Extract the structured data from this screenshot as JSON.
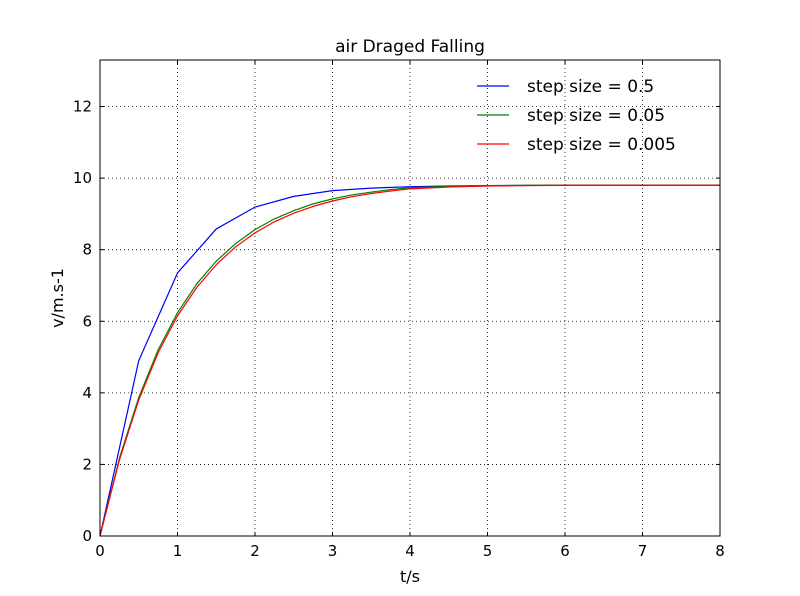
{
  "chart_data": {
    "type": "line",
    "title": "air Draged Falling",
    "xlabel": "t/s",
    "ylabel": "v/m.s-1",
    "xlim": [
      0,
      8
    ],
    "ylim": [
      0,
      13.3
    ],
    "xticks": [
      0,
      1,
      2,
      3,
      4,
      5,
      6,
      7,
      8
    ],
    "yticks": [
      0,
      2,
      4,
      6,
      8,
      10,
      12
    ],
    "grid": true,
    "legend_position": "top-right",
    "series": [
      {
        "name": "step size = 0.5",
        "color": "#0000ff",
        "x": [
          0,
          0.5,
          1.0,
          1.5,
          2.0,
          2.5,
          3.0,
          3.5,
          4.0,
          4.5,
          5.0,
          5.5,
          6.0,
          6.5,
          7.0,
          7.5,
          8.0
        ],
        "y": [
          0,
          4.9,
          7.35,
          8.58,
          9.19,
          9.49,
          9.65,
          9.72,
          9.76,
          9.78,
          9.79,
          9.795,
          9.8,
          9.8,
          9.8,
          9.8,
          9.8
        ]
      },
      {
        "name": "step size = 0.05",
        "color": "#008000",
        "x": [
          0,
          0.25,
          0.5,
          0.75,
          1.0,
          1.25,
          1.5,
          1.75,
          2.0,
          2.25,
          2.5,
          2.75,
          3.0,
          3.25,
          3.5,
          3.75,
          4.0,
          4.5,
          5.0,
          5.5,
          6.0,
          6.5,
          7.0,
          7.5,
          8.0
        ],
        "y": [
          0,
          2.17,
          3.87,
          5.2,
          6.24,
          7.05,
          7.68,
          8.17,
          8.56,
          8.86,
          9.09,
          9.28,
          9.42,
          9.53,
          9.61,
          9.68,
          9.73,
          9.77,
          9.79,
          9.8,
          9.8,
          9.8,
          9.8,
          9.8,
          9.8
        ]
      },
      {
        "name": "step size = 0.005",
        "color": "#ff0000",
        "x": [
          0,
          0.25,
          0.5,
          0.75,
          1.0,
          1.25,
          1.5,
          1.75,
          2.0,
          2.25,
          2.5,
          2.75,
          3.0,
          3.25,
          3.5,
          3.75,
          4.0,
          4.5,
          5.0,
          5.5,
          6.0,
          6.5,
          7.0,
          7.5,
          8.0
        ],
        "y": [
          0,
          2.12,
          3.8,
          5.12,
          6.15,
          6.95,
          7.58,
          8.08,
          8.47,
          8.78,
          9.02,
          9.21,
          9.36,
          9.48,
          9.57,
          9.64,
          9.7,
          9.75,
          9.78,
          9.79,
          9.8,
          9.8,
          9.8,
          9.8,
          9.8
        ]
      }
    ]
  }
}
